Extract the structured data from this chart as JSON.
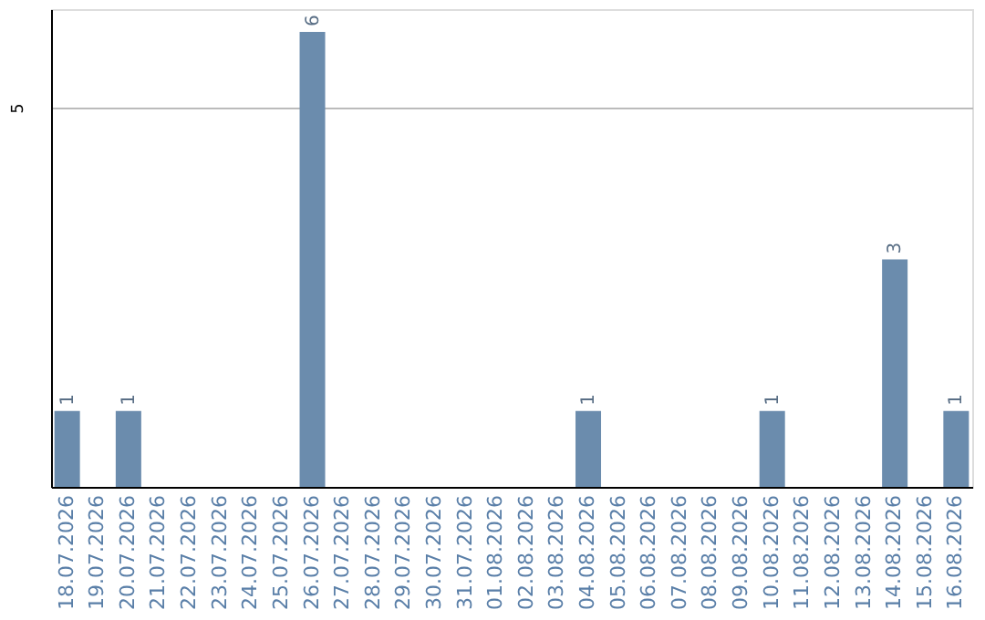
{
  "chart_data": {
    "type": "bar",
    "categories": [
      "18.07.2026",
      "19.07.2026",
      "20.07.2026",
      "21.07.2026",
      "22.07.2026",
      "23.07.2026",
      "24.07.2026",
      "25.07.2026",
      "26.07.2026",
      "27.07.2026",
      "28.07.2026",
      "29.07.2026",
      "30.07.2026",
      "31.07.2026",
      "01.08.2026",
      "02.08.2026",
      "03.08.2026",
      "04.08.2026",
      "05.08.2026",
      "06.08.2026",
      "07.08.2026",
      "08.08.2026",
      "09.08.2026",
      "10.08.2026",
      "11.08.2026",
      "12.08.2026",
      "13.08.2026",
      "14.08.2026",
      "15.08.2026",
      "16.08.2026"
    ],
    "values": [
      1,
      null,
      1,
      null,
      null,
      null,
      null,
      null,
      6,
      null,
      null,
      null,
      null,
      null,
      null,
      null,
      null,
      1,
      null,
      null,
      null,
      null,
      null,
      1,
      null,
      null,
      null,
      3,
      null,
      1
    ],
    "color": "#6b8cad",
    "ylim": [
      0,
      6.3
    ],
    "yticks": [
      5
    ],
    "grid": "y",
    "data_labels": true
  }
}
